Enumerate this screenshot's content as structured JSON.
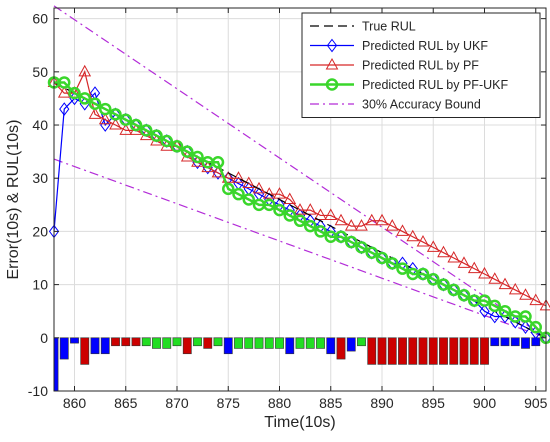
{
  "chart_data": {
    "type": "line",
    "title": "",
    "xlabel": "Time(10s)",
    "ylabel": "Error(10s) & RUL(10s)",
    "xlim": [
      858,
      906
    ],
    "ylim": [
      -10,
      62
    ],
    "xticks": [
      860,
      865,
      870,
      875,
      880,
      885,
      890,
      895,
      900,
      905
    ],
    "yticks": [
      -10,
      0,
      10,
      20,
      30,
      40,
      50,
      60
    ],
    "grid": true,
    "legend_position": "top-right",
    "series": [
      {
        "name": "True RUL",
        "color": "#000000",
        "style": "dashed",
        "x": [
          858,
          906
        ],
        "y": [
          48,
          0
        ]
      },
      {
        "name": "Predicted RUL by UKF",
        "color": "#0000ff",
        "marker": "diamond",
        "x": [
          858,
          859,
          860,
          861,
          862,
          863,
          864,
          865,
          866,
          867,
          868,
          869,
          870,
          871,
          872,
          873,
          874,
          875,
          876,
          877,
          878,
          879,
          880,
          881,
          882,
          883,
          884,
          885,
          886,
          887,
          888,
          889,
          890,
          891,
          892,
          893,
          894,
          895,
          896,
          897,
          898,
          899,
          900,
          901,
          902,
          903,
          904,
          905,
          906
        ],
        "y": [
          20,
          43,
          45,
          44,
          46,
          40,
          42,
          41,
          40,
          39,
          38,
          37,
          36,
          35,
          33,
          32,
          31,
          30,
          29,
          28,
          27,
          26,
          25,
          24,
          23,
          22,
          21,
          20,
          19,
          18,
          17,
          16,
          15,
          14,
          14,
          13,
          12,
          11,
          10,
          9,
          8,
          7,
          5,
          4,
          4,
          3,
          2,
          1,
          0
        ]
      },
      {
        "name": "Predicted RUL by PF",
        "color": "#d62728",
        "marker": "triangle",
        "x": [
          858,
          859,
          860,
          861,
          862,
          863,
          864,
          865,
          866,
          867,
          868,
          869,
          870,
          871,
          872,
          873,
          874,
          875,
          876,
          877,
          878,
          879,
          880,
          881,
          882,
          883,
          884,
          885,
          886,
          887,
          888,
          889,
          890,
          891,
          892,
          893,
          894,
          895,
          896,
          897,
          898,
          899,
          900,
          901,
          902,
          903,
          904,
          905,
          906
        ],
        "y": [
          48,
          46,
          46,
          50,
          42,
          41,
          40,
          39,
          39,
          38,
          37,
          36,
          36,
          34,
          33,
          32,
          31,
          30,
          30,
          29,
          28,
          27,
          27,
          26,
          24,
          24,
          23,
          23,
          22,
          21,
          21,
          22,
          22,
          21,
          20,
          19,
          18,
          17,
          16,
          15,
          14,
          13,
          12,
          11,
          10,
          9,
          8,
          7,
          6
        ]
      },
      {
        "name": "Predicted RUL by PF-UKF",
        "color": "#3ad62b",
        "marker": "circle",
        "x": [
          858,
          859,
          860,
          861,
          862,
          863,
          864,
          865,
          866,
          867,
          868,
          869,
          870,
          871,
          872,
          873,
          874,
          875,
          876,
          877,
          878,
          879,
          880,
          881,
          882,
          883,
          884,
          885,
          886,
          887,
          888,
          889,
          890,
          891,
          892,
          893,
          894,
          895,
          896,
          897,
          898,
          899,
          900,
          901,
          902,
          903,
          904,
          905,
          906
        ],
        "y": [
          48,
          48,
          46,
          45,
          44,
          43,
          42,
          41,
          40,
          39,
          38,
          37,
          36,
          35,
          34,
          33,
          33,
          28,
          27,
          26,
          25,
          25,
          24,
          23,
          22,
          21,
          20,
          19,
          19,
          18,
          17,
          16,
          15,
          14,
          13,
          12,
          12,
          11,
          10,
          9,
          8,
          7,
          7,
          6,
          5,
          4,
          4,
          2,
          0
        ]
      },
      {
        "name": "30% Accuracy Bound",
        "color": "#b32cd8",
        "style": "dashdot",
        "x": [
          858,
          906
        ],
        "y": [
          62.4,
          0
        ]
      },
      {
        "name": "",
        "color": "#b32cd8",
        "style": "dashdot",
        "x": [
          858,
          906
        ],
        "y": [
          33.6,
          0
        ]
      }
    ],
    "error_bars": {
      "width": 0.8,
      "colors": {
        "blue": "#0000ff",
        "green": "#22dd22",
        "red": "#cc0000"
      },
      "x": [
        858,
        859,
        860,
        861,
        862,
        863,
        864,
        865,
        866,
        867,
        868,
        869,
        870,
        871,
        872,
        873,
        874,
        875,
        876,
        877,
        878,
        879,
        880,
        881,
        882,
        883,
        884,
        885,
        886,
        887,
        888,
        889,
        890,
        891,
        892,
        893,
        894,
        895,
        896,
        897,
        898,
        899,
        900,
        901,
        902,
        903,
        904,
        905,
        906
      ],
      "y": [
        -10,
        -4,
        -1,
        -5,
        -3,
        -3,
        -1.5,
        -1.5,
        -1.5,
        -1.5,
        -2,
        -2,
        -1.5,
        -3,
        -1.5,
        -2,
        -1.5,
        -3,
        -2,
        -2,
        -2,
        -2,
        -2,
        -3,
        -2,
        -2,
        -2,
        -3,
        -4,
        -2.5,
        -1.5,
        -5,
        -5,
        -5,
        -5,
        -5,
        -5,
        -5,
        -5,
        -5,
        -5,
        -5,
        -5,
        -1.5,
        -1.5,
        -1.5,
        -2,
        -1.5,
        0
      ],
      "c": [
        "blue",
        "blue",
        "blue",
        "red",
        "blue",
        "blue",
        "red",
        "red",
        "red",
        "green",
        "green",
        "green",
        "green",
        "red",
        "green",
        "red",
        "green",
        "blue",
        "green",
        "green",
        "green",
        "green",
        "green",
        "blue",
        "green",
        "green",
        "green",
        "blue",
        "red",
        "blue",
        "green",
        "red",
        "red",
        "red",
        "red",
        "red",
        "red",
        "red",
        "red",
        "red",
        "red",
        "red",
        "red",
        "blue",
        "blue",
        "blue",
        "blue",
        "blue",
        "blue"
      ]
    }
  }
}
